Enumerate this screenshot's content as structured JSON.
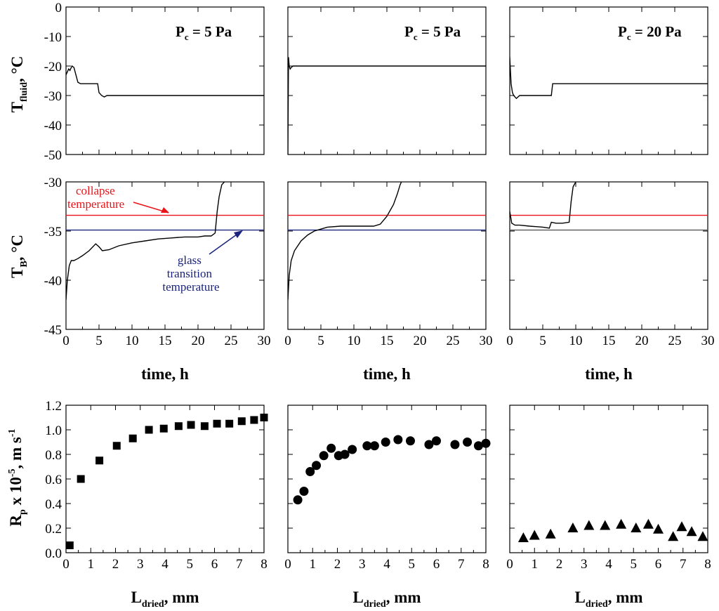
{
  "colors": {
    "collapse": "#e8141a",
    "glass": "#1a237e",
    "reference": "#555555",
    "series": "#000000"
  },
  "chart_data": [
    {
      "id": "tfluid-1",
      "type": "line",
      "ylabel": "T",
      "ylabel_sub": "fluid",
      "ylabel_suffix": ", °C",
      "annotation": {
        "main": "P",
        "sub": "c",
        "rest": " = 5 Pa"
      },
      "xlim": [
        0,
        30
      ],
      "ylim": [
        -50,
        0
      ],
      "yticks": [
        0,
        -10,
        -20,
        -30,
        -40,
        -50
      ],
      "series": [
        {
          "x": [
            0,
            0.2,
            0.4,
            0.6,
            0.9,
            1.2,
            1.5,
            1.8,
            2.2,
            3.0,
            4.0,
            4.8,
            5.0,
            5.4,
            5.8,
            6.2,
            7.0,
            10.0,
            15.0,
            20.0,
            25.0,
            30.0
          ],
          "y": [
            -23,
            -22,
            -21,
            -21.5,
            -20,
            -20.5,
            -23,
            -25.5,
            -26,
            -26,
            -26,
            -26,
            -29,
            -30,
            -30.5,
            -30,
            -30,
            -30,
            -30,
            -30,
            -30,
            -30
          ]
        }
      ]
    },
    {
      "id": "tfluid-2",
      "type": "line",
      "annotation": {
        "main": "P",
        "sub": "c",
        "rest": " = 5 Pa"
      },
      "xlim": [
        0,
        30
      ],
      "ylim": [
        -50,
        0
      ],
      "series": [
        {
          "x": [
            0,
            0.1,
            0.2,
            0.35,
            0.5,
            0.8,
            1.2,
            2.0,
            5.0,
            10.0,
            15.0,
            20.0,
            25.0,
            30.0
          ],
          "y": [
            -50,
            -17,
            -20,
            -21,
            -20.5,
            -20,
            -20,
            -20,
            -20,
            -20,
            -20,
            -20,
            -20,
            -20
          ]
        }
      ]
    },
    {
      "id": "tfluid-3",
      "type": "line",
      "annotation": {
        "main": "P",
        "sub": "c",
        "rest": " = 20 Pa"
      },
      "xlim": [
        0,
        30
      ],
      "ylim": [
        -50,
        0
      ],
      "series": [
        {
          "x": [
            0,
            0.2,
            0.4,
            0.6,
            1.0,
            1.5,
            2.0,
            3.0,
            5.0,
            6.3,
            6.5,
            8.0,
            10.0,
            15.0,
            20.0,
            25.0,
            30.0
          ],
          "y": [
            -17,
            -26,
            -29,
            -30,
            -31,
            -30,
            -30,
            -30,
            -30,
            -30,
            -26,
            -26,
            -26,
            -26,
            -26,
            -26,
            -26
          ]
        }
      ]
    },
    {
      "id": "tb-1",
      "type": "line",
      "ylabel": "T",
      "ylabel_sub": "B",
      "ylabel_suffix": ", °C",
      "xlim": [
        0,
        30
      ],
      "ylim": [
        -45,
        -30
      ],
      "yticks": [
        -30,
        -35,
        -40,
        -45
      ],
      "hlines": [
        {
          "y": -33.4,
          "role": "collapse",
          "label_lines": [
            "collapse",
            "temperature"
          ]
        },
        {
          "y": -34.9,
          "role": "glass",
          "label_lines": [
            "glass",
            "transition",
            "temperature"
          ]
        }
      ],
      "series": [
        {
          "x": [
            0,
            0.2,
            0.5,
            0.8,
            1.2,
            1.8,
            2.5,
            3.5,
            4.5,
            5.0,
            5.5,
            6.5,
            8,
            10,
            12,
            14,
            16,
            18,
            20,
            21,
            22,
            22.6,
            22.9,
            23.2,
            23.6,
            24.0
          ],
          "y": [
            -42,
            -40,
            -38.5,
            -38,
            -38,
            -37.8,
            -37.5,
            -37,
            -36.3,
            -36.6,
            -37,
            -36.9,
            -36.5,
            -36.2,
            -36,
            -35.8,
            -35.7,
            -35.6,
            -35.6,
            -35.5,
            -35.5,
            -35.2,
            -33,
            -31.5,
            -30.3,
            -30
          ]
        }
      ]
    },
    {
      "id": "tb-2",
      "type": "line",
      "xlim": [
        0,
        30
      ],
      "ylim": [
        -45,
        -30
      ],
      "hlines": [
        {
          "y": -33.4,
          "role": "collapse"
        },
        {
          "y": -34.9,
          "role": "glass"
        }
      ],
      "series": [
        {
          "x": [
            0,
            0.2,
            0.5,
            1.0,
            1.5,
            2.0,
            3.0,
            4.0,
            5.0,
            6.0,
            8,
            10,
            12,
            13,
            14,
            15,
            16,
            16.6,
            17.0,
            17.2
          ],
          "y": [
            -42,
            -39.5,
            -38,
            -37,
            -36.5,
            -36,
            -35.4,
            -35,
            -34.8,
            -34.6,
            -34.5,
            -34.5,
            -34.5,
            -34.5,
            -34.3,
            -33.5,
            -32.3,
            -31.2,
            -30.3,
            -30
          ]
        }
      ]
    },
    {
      "id": "tb-3",
      "type": "line",
      "xlim": [
        0,
        30
      ],
      "ylim": [
        -45,
        -30
      ],
      "hlines": [
        {
          "y": -33.4,
          "role": "collapse"
        },
        {
          "y": -34.9,
          "role": "reference"
        }
      ],
      "series": [
        {
          "x": [
            0,
            0.3,
            0.8,
            1.5,
            3.0,
            5.0,
            6.0,
            6.3,
            7.0,
            8.0,
            9.0,
            9.3,
            9.6,
            10.0
          ],
          "y": [
            -33,
            -34.2,
            -34.4,
            -34.4,
            -34.5,
            -34.6,
            -34.7,
            -34.1,
            -34.2,
            -34.2,
            -34.1,
            -32,
            -30.5,
            -30
          ]
        }
      ]
    },
    {
      "id": "rp-1",
      "type": "scatter",
      "marker": "square",
      "ylabel": "R",
      "ylabel_sub": "p",
      "ylabel_mid": " x 10",
      "ylabel_sup": "-5",
      "ylabel_suffix": ", m s",
      "ylabel_sup2": "-1",
      "xlim": [
        0,
        8
      ],
      "ylim": [
        0,
        1.2
      ],
      "yticks": [
        0.0,
        0.2,
        0.4,
        0.6,
        0.8,
        1.0,
        1.2
      ],
      "series": [
        {
          "x": [
            0.15,
            0.6,
            1.35,
            2.05,
            2.7,
            3.35,
            3.95,
            4.55,
            5.05,
            5.6,
            6.1,
            6.6,
            7.1,
            7.6,
            8.0
          ],
          "y": [
            0.06,
            0.6,
            0.75,
            0.87,
            0.93,
            1.0,
            1.01,
            1.03,
            1.04,
            1.03,
            1.05,
            1.05,
            1.07,
            1.08,
            1.1
          ]
        }
      ]
    },
    {
      "id": "rp-2",
      "type": "scatter",
      "marker": "circle",
      "xlim": [
        0,
        8
      ],
      "ylim": [
        0,
        1.2
      ],
      "series": [
        {
          "x": [
            0.4,
            0.65,
            0.9,
            1.15,
            1.45,
            1.75,
            2.05,
            2.3,
            2.6,
            3.2,
            3.5,
            3.95,
            4.45,
            4.95,
            5.7,
            6.0,
            6.75,
            7.25,
            7.7,
            8.0
          ],
          "y": [
            0.43,
            0.5,
            0.66,
            0.71,
            0.79,
            0.85,
            0.79,
            0.8,
            0.84,
            0.87,
            0.87,
            0.9,
            0.92,
            0.91,
            0.88,
            0.91,
            0.88,
            0.9,
            0.87,
            0.89
          ]
        }
      ]
    },
    {
      "id": "rp-3",
      "type": "scatter",
      "marker": "triangle",
      "xlim": [
        0,
        8
      ],
      "ylim": [
        0,
        1.2
      ],
      "series": [
        {
          "x": [
            0.55,
            1.0,
            1.65,
            2.55,
            3.2,
            3.85,
            4.5,
            5.1,
            5.6,
            6.0,
            6.6,
            6.95,
            7.35,
            7.8
          ],
          "y": [
            0.12,
            0.14,
            0.15,
            0.2,
            0.22,
            0.22,
            0.23,
            0.2,
            0.23,
            0.19,
            0.13,
            0.21,
            0.17,
            0.13
          ]
        }
      ]
    }
  ],
  "x_labels": {
    "time": "time, h",
    "ldried_main": "L",
    "ldried_sub": "dried",
    "ldried_rest": ", mm"
  },
  "x_ticks": {
    "time": [
      0,
      5,
      10,
      15,
      20,
      25,
      30
    ],
    "ldried": [
      0,
      1,
      2,
      3,
      4,
      5,
      6,
      7,
      8
    ]
  }
}
